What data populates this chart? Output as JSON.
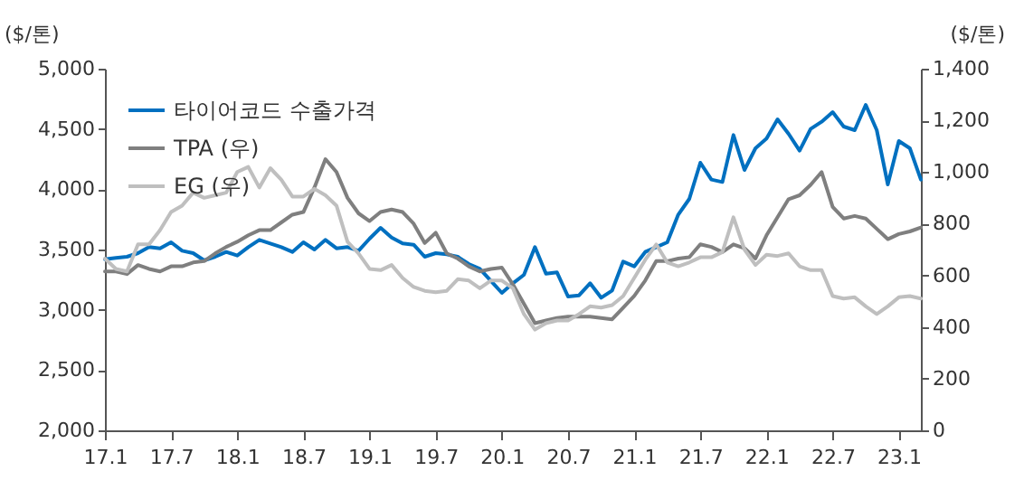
{
  "chart_data": {
    "type": "line",
    "ylabel": "($/톤)",
    "y2label": "($/톤)",
    "legend": "top left",
    "categories": [
      "17.1",
      null,
      null,
      null,
      null,
      null,
      "17.7",
      null,
      null,
      null,
      null,
      null,
      "18.1",
      null,
      null,
      null,
      null,
      null,
      "18.7",
      null,
      null,
      null,
      null,
      null,
      "19.1",
      null,
      null,
      null,
      null,
      null,
      "19.7",
      null,
      null,
      null,
      null,
      null,
      "20.1",
      null,
      null,
      null,
      null,
      null,
      "20.7",
      null,
      null,
      null,
      null,
      null,
      "21.1",
      null,
      null,
      null,
      null,
      null,
      "21.7",
      null,
      null,
      null,
      null,
      null,
      "22.1",
      null,
      null,
      null,
      null,
      null,
      "22.7",
      null,
      null,
      null,
      null,
      null,
      "23.1",
      null,
      null
    ],
    "ylim": [
      2000,
      5000
    ],
    "yticks": [
      {
        "value": 2000,
        "label": "2,000"
      },
      {
        "value": 2500,
        "label": "2,500"
      },
      {
        "value": 3000,
        "label": "3,000"
      },
      {
        "value": 3500,
        "label": "3,500"
      },
      {
        "value": 4000,
        "label": "4,000"
      },
      {
        "value": 4500,
        "label": "4,500"
      },
      {
        "value": 5000,
        "label": "5,000"
      }
    ],
    "y2lim": [
      0,
      1400
    ],
    "y2ticks": [
      0,
      200,
      400,
      600,
      800,
      {
        "value": 1000,
        "label": "1,000"
      },
      {
        "value": 1200,
        "label": "1,200"
      },
      {
        "value": 1400,
        "label": "1,400"
      }
    ],
    "series": [
      {
        "name": "타이어코드 수출가격",
        "color": "#0070c0",
        "values": [
          3420,
          3430,
          3440,
          3470,
          3520,
          3510,
          3560,
          3490,
          3470,
          3410,
          3440,
          3480,
          3450,
          3520,
          3580,
          3550,
          3520,
          3480,
          3560,
          3500,
          3580,
          3510,
          3520,
          3490,
          3590,
          3680,
          3600,
          3550,
          3540,
          3440,
          3470,
          3460,
          3440,
          3380,
          3340,
          3240,
          3140,
          3220,
          3290,
          3520,
          3300,
          3310,
          3110,
          3120,
          3220,
          3100,
          3160,
          3400,
          3360,
          3480,
          3520,
          3560,
          3790,
          3920,
          4220,
          4080,
          4060,
          4450,
          4160,
          4340,
          4420,
          4580,
          4460,
          4320,
          4500,
          4560,
          4640,
          4520,
          4490,
          4700,
          4490,
          4040,
          4400,
          4340,
          4080
        ]
      },
      {
        "name": "TPA (우)",
        "color": "#7f7f7f",
        "axis": "y2",
        "values": [
          615,
          615,
          605,
          640,
          625,
          615,
          635,
          635,
          650,
          655,
          685,
          710,
          730,
          755,
          775,
          775,
          805,
          835,
          845,
          940,
          1050,
          1000,
          900,
          840,
          810,
          845,
          855,
          845,
          800,
          725,
          765,
          685,
          665,
          635,
          615,
          625,
          630,
          565,
          490,
          415,
          425,
          435,
          440,
          440,
          440,
          435,
          430,
          475,
          520,
          580,
          655,
          655,
          665,
          670,
          720,
          710,
          690,
          720,
          705,
          665,
          755,
          825,
          895,
          910,
          950,
          1000,
          865,
          820,
          830,
          820,
          780,
          740,
          760,
          770,
          785
        ]
      },
      {
        "name": "EG (우)",
        "color": "#bfbfbf",
        "axis": "y2",
        "values": [
          665,
          625,
          615,
          720,
          720,
          775,
          845,
          870,
          920,
          900,
          910,
          920,
          1000,
          1020,
          940,
          1015,
          970,
          905,
          905,
          935,
          910,
          870,
          730,
          685,
          625,
          620,
          640,
          590,
          555,
          540,
          535,
          540,
          585,
          580,
          550,
          580,
          580,
          550,
          450,
          390,
          415,
          425,
          425,
          450,
          480,
          475,
          485,
          520,
          590,
          660,
          720,
          650,
          635,
          650,
          670,
          670,
          690,
          825,
          700,
          640,
          680,
          675,
          685,
          635,
          620,
          620,
          520,
          510,
          515,
          480,
          450,
          480,
          515,
          520,
          510
        ]
      }
    ]
  }
}
